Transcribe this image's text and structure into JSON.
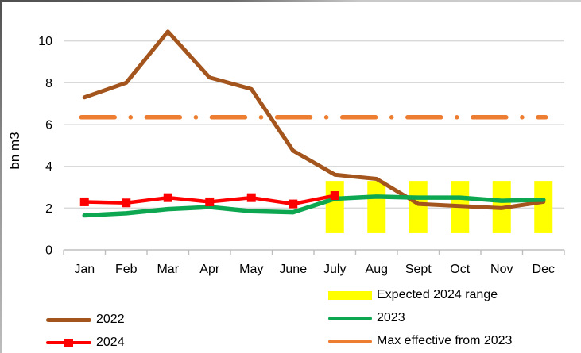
{
  "chart_data": {
    "type": "line",
    "title": "",
    "ylabel": "bn m3",
    "categories": [
      "Jan",
      "Feb",
      "Mar",
      "Apr",
      "May",
      "June",
      "July",
      "Aug",
      "Sept",
      "Oct",
      "Nov",
      "Dec"
    ],
    "yticks": [
      0,
      2,
      4,
      6,
      8,
      10
    ],
    "ylim": [
      0,
      11
    ],
    "grid": "horizontal",
    "series": [
      {
        "name": "2022",
        "color": "#a3551d",
        "marker": "none",
        "values": [
          7.3,
          8.0,
          10.45,
          8.25,
          7.7,
          4.75,
          3.6,
          3.4,
          2.2,
          2.1,
          2.0,
          2.3
        ]
      },
      {
        "name": "2023",
        "color": "#0ca750",
        "marker": "none",
        "values": [
          1.65,
          1.75,
          1.95,
          2.05,
          1.85,
          1.8,
          2.45,
          2.55,
          2.5,
          2.5,
          2.35,
          2.4
        ]
      },
      {
        "name": "2024",
        "color": "#ff0000",
        "marker": "square",
        "values": [
          2.3,
          2.25,
          2.5,
          2.3,
          2.5,
          2.2,
          2.6,
          null,
          null,
          null,
          null,
          null
        ]
      }
    ],
    "max_effective_line": {
      "label": "Max effective from 2023",
      "color": "#ed7d31",
      "value": 6.35,
      "style": "dash-dot"
    },
    "expected_range": {
      "label": "Expected 2024 range",
      "color": "#ffff00",
      "months": [
        "July",
        "Aug",
        "Sept",
        "Oct",
        "Nov",
        "Dec"
      ],
      "low": 0.8,
      "high": 3.3
    },
    "legend_position": "bottom"
  },
  "legend": {
    "left": [
      {
        "label": "2022",
        "color": "#a3551d",
        "swatch": "line"
      },
      {
        "label": "2024",
        "color": "#ff0000",
        "swatch": "line-square"
      }
    ],
    "right": [
      {
        "label": "Expected 2024 range",
        "color": "#ffff00",
        "swatch": "rect"
      },
      {
        "label": "2023",
        "color": "#0ca750",
        "swatch": "line"
      },
      {
        "label": "Max effective from 2023",
        "color": "#ed7d31",
        "swatch": "line"
      }
    ]
  }
}
